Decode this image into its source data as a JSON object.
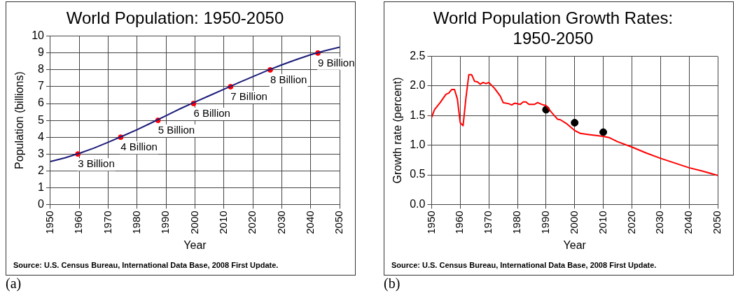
{
  "chart_data": [
    {
      "type": "line",
      "title": "World Population: 1950-2050",
      "xlabel": "Year",
      "ylabel": "Population (billions)",
      "xlim": [
        1950,
        2050
      ],
      "xticks": [
        1950,
        1960,
        1970,
        1980,
        1990,
        2000,
        2010,
        2020,
        2030,
        2040,
        2050
      ],
      "ylim": [
        0,
        10
      ],
      "yticks": [
        0,
        1,
        2,
        3,
        4,
        5,
        6,
        7,
        8,
        9,
        10
      ],
      "grid": true,
      "legend": false,
      "annotations": [
        "Source: U.S. Census Bureau, International Data Base, 2008 First Update.",
        "(a)"
      ],
      "series": [
        {
          "color": "#1c1c7a",
          "marker": "none",
          "x": [
            1950,
            1955,
            1960,
            1965,
            1970,
            1975,
            1980,
            1985,
            1990,
            1995,
            2000,
            2005,
            2010,
            2015,
            2020,
            2025,
            2030,
            2035,
            2040,
            2045,
            2050
          ],
          "values": [
            2.55,
            2.77,
            3.04,
            3.35,
            3.7,
            4.07,
            4.45,
            4.86,
            5.28,
            5.7,
            6.09,
            6.47,
            6.85,
            7.23,
            7.6,
            7.96,
            8.3,
            8.61,
            8.9,
            9.14,
            9.35
          ]
        },
        {
          "type": "scatter",
          "color": "#ff0000",
          "marker": "circle",
          "x": [
            1959.5,
            1974.3,
            1987.2,
            1999.5,
            2012.3,
            2026,
            2042.5
          ],
          "values": [
            3,
            4,
            5,
            6,
            7,
            8,
            9
          ],
          "value_labels": [
            "3 Billion",
            "4 Billion",
            "5 Billion",
            "6 Billion",
            "7 Billion",
            "8 Billion",
            "9 Billion"
          ]
        }
      ]
    },
    {
      "type": "line",
      "title": "World Population Growth Rates: 1950-2050",
      "xlabel": "Year",
      "ylabel": "Growth rate (percent)",
      "xlim": [
        1950,
        2050
      ],
      "xticks": [
        1950,
        1960,
        1970,
        1980,
        1990,
        2000,
        2010,
        2020,
        2030,
        2040,
        2050
      ],
      "ylim": [
        0,
        2.5
      ],
      "yticks": [
        {
          "value": 0,
          "label": "0.0"
        },
        {
          "value": 0.5,
          "label": "0.5"
        },
        {
          "value": 1,
          "label": "1.0"
        },
        {
          "value": 1.5,
          "label": "1.5"
        },
        {
          "value": 2,
          "label": "2.0"
        },
        {
          "value": 2.5,
          "label": "2.5"
        }
      ],
      "grid": true,
      "legend": false,
      "annotations": [
        "Source: U.S. Census Bureau, International Data Base, 2008 First Update.",
        "(b)"
      ],
      "series": [
        {
          "color": "#ff0000",
          "marker": "none",
          "x": [
            1950,
            1951,
            1953,
            1955,
            1956,
            1957,
            1958,
            1959,
            1960,
            1961,
            1962,
            1963,
            1964,
            1965,
            1966,
            1967,
            1968,
            1969,
            1970,
            1972,
            1974,
            1975,
            1977,
            1978,
            1979,
            1981,
            1982,
            1983,
            1984,
            1986,
            1987,
            1989,
            1990,
            1992,
            1994,
            1995,
            1997,
            2000,
            2002,
            2005,
            2010,
            2012,
            2015,
            2020,
            2025,
            2030,
            2035,
            2040,
            2045,
            2050
          ],
          "values": [
            1.47,
            1.6,
            1.72,
            1.86,
            1.88,
            1.94,
            1.94,
            1.78,
            1.38,
            1.33,
            1.8,
            2.19,
            2.19,
            2.08,
            2.07,
            2.03,
            2.06,
            2.04,
            2.06,
            1.96,
            1.83,
            1.72,
            1.7,
            1.68,
            1.71,
            1.69,
            1.73,
            1.73,
            1.69,
            1.69,
            1.72,
            1.68,
            1.67,
            1.55,
            1.44,
            1.43,
            1.37,
            1.25,
            1.2,
            1.18,
            1.15,
            1.13,
            1.06,
            0.97,
            0.87,
            0.78,
            0.7,
            0.62,
            0.56,
            0.49
          ]
        },
        {
          "type": "scatter",
          "color": "#000000",
          "marker": "circle",
          "x": [
            1990,
            2000,
            2010
          ],
          "values": [
            1.6,
            1.38,
            1.22
          ]
        }
      ]
    }
  ]
}
